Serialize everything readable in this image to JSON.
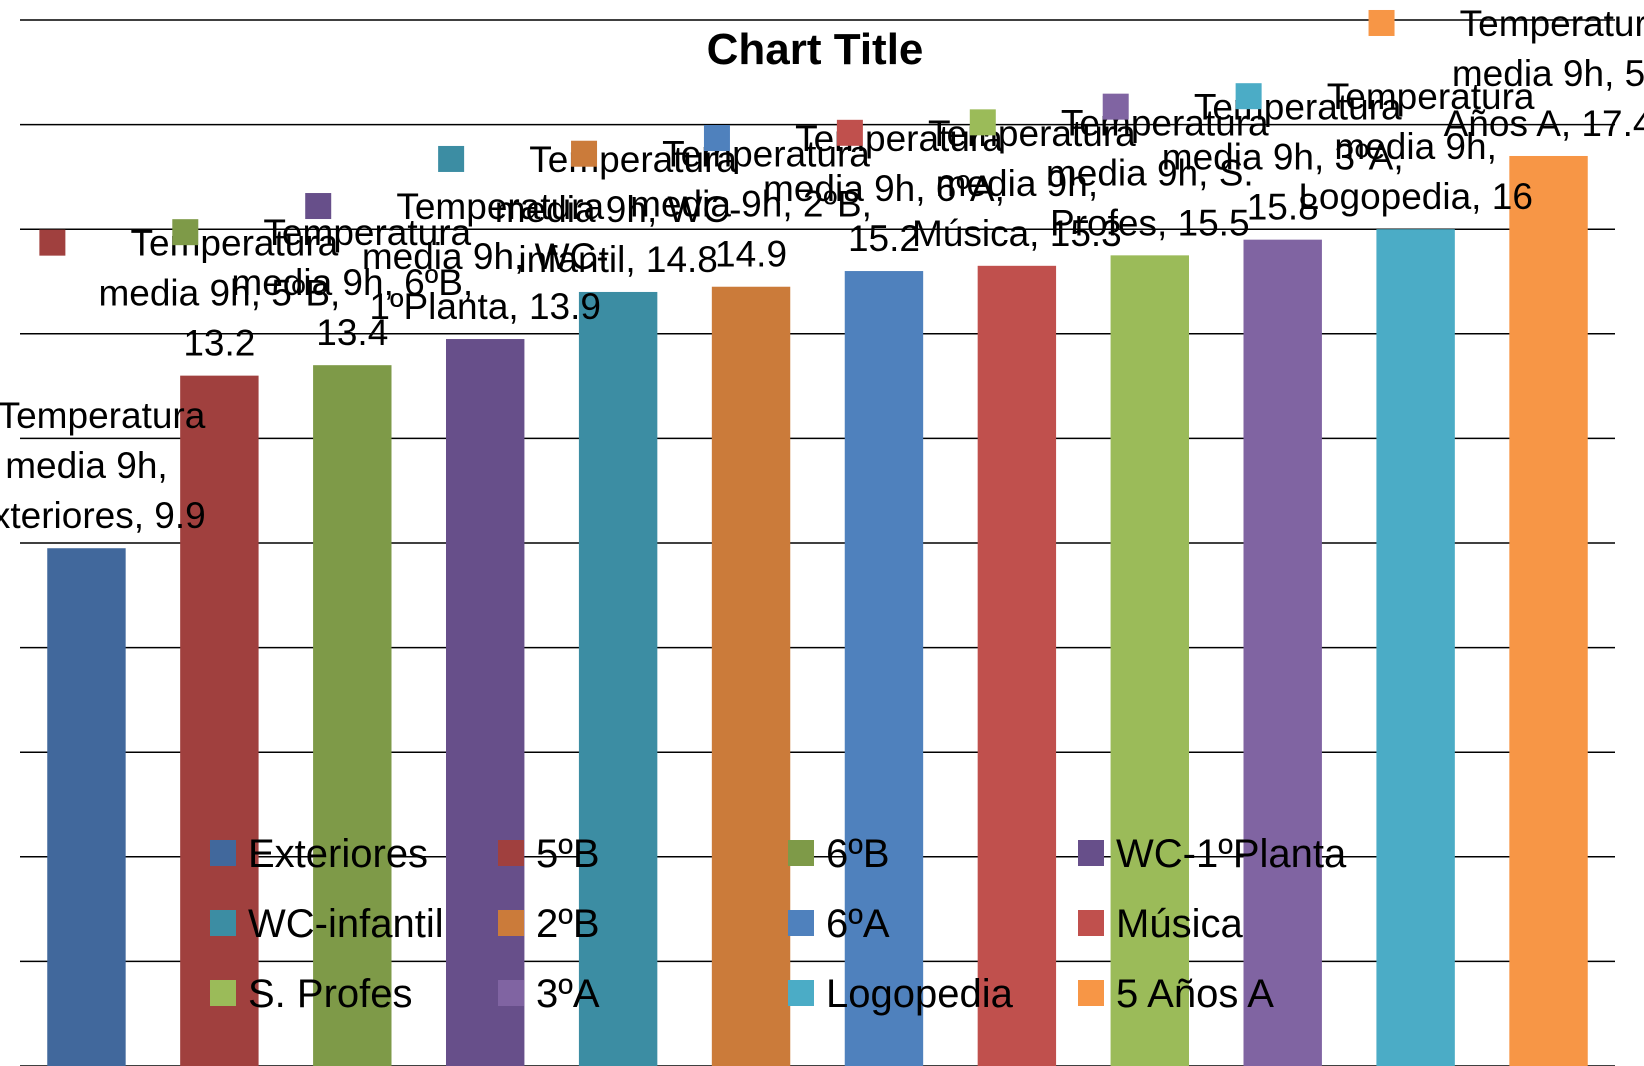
{
  "chart_data": {
    "type": "bar",
    "title": "Chart Title",
    "series_name": "Temperatura media 9h",
    "categories": [
      "Exteriores",
      "5ºB",
      "6ºB",
      "WC-1ºPlanta",
      "WC-infantil",
      "2ºB",
      "6ºA",
      "Música",
      "S. Profes",
      "3ºA",
      "Logopedia",
      "5 Años A"
    ],
    "values": [
      9.9,
      13.2,
      13.4,
      13.9,
      14.8,
      14.9,
      15.2,
      15.3,
      15.5,
      15.8,
      16,
      17.4
    ],
    "ylim": [
      0,
      20
    ],
    "grid": true,
    "axis_labels_shown": false,
    "legend_position": "bottom-inside",
    "data_label_format": "series, category, value",
    "colors": [
      "#41689C",
      "#A0403E",
      "#7E9A48",
      "#674F8A",
      "#3C8DA3",
      "#CB7B3A",
      "#4F81BD",
      "#C0504D",
      "#9BBB59",
      "#8064A2",
      "#4BACC6",
      "#F79646"
    ]
  }
}
